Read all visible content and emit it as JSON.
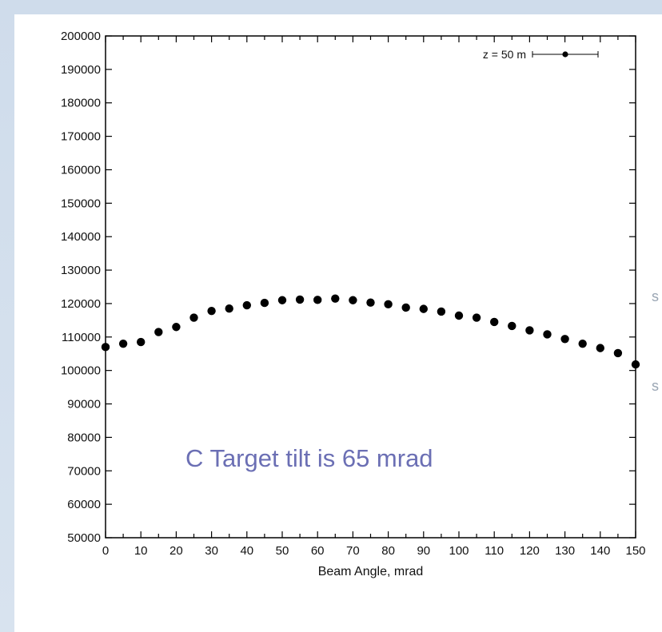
{
  "colors": {
    "background": "#d5e0ec",
    "panel": "#ffffff",
    "axis": "#000000",
    "points": "#000000",
    "annotation": "#6b6fb4"
  },
  "chart_data": {
    "type": "scatter",
    "title": "",
    "xlabel": "Beam Angle, mrad",
    "ylabel": "",
    "xlim": [
      0,
      150
    ],
    "ylim": [
      50000,
      200000
    ],
    "x_ticks": [
      "0",
      "10",
      "20",
      "30",
      "40",
      "50",
      "60",
      "70",
      "80",
      "90",
      "100",
      "110",
      "120",
      "130",
      "140",
      "150"
    ],
    "y_ticks": [
      "50000",
      "60000",
      "70000",
      "80000",
      "90000",
      "100000",
      "110000",
      "120000",
      "130000",
      "140000",
      "150000",
      "160000",
      "170000",
      "180000",
      "190000",
      "200000"
    ],
    "grid": false,
    "legend": {
      "position": "top-right",
      "entries": [
        "z = 50 m"
      ]
    },
    "series": [
      {
        "name": "z = 50 m",
        "x": [
          0,
          5,
          10,
          15,
          20,
          25,
          30,
          35,
          40,
          45,
          50,
          55,
          60,
          65,
          70,
          75,
          80,
          85,
          90,
          95,
          100,
          105,
          110,
          115,
          120,
          125,
          130,
          135,
          140,
          145,
          150
        ],
        "y": [
          107000,
          108000,
          108500,
          111500,
          113000,
          115800,
          117800,
          118500,
          119500,
          120200,
          121000,
          121200,
          121100,
          121500,
          121000,
          120300,
          119800,
          118800,
          118400,
          117600,
          116400,
          115800,
          114500,
          113300,
          112000,
          110800,
          109400,
          108000,
          106700,
          105200,
          101800
        ]
      }
    ],
    "annotations": [
      {
        "text": "C Target tilt is 65 mrad"
      }
    ]
  }
}
